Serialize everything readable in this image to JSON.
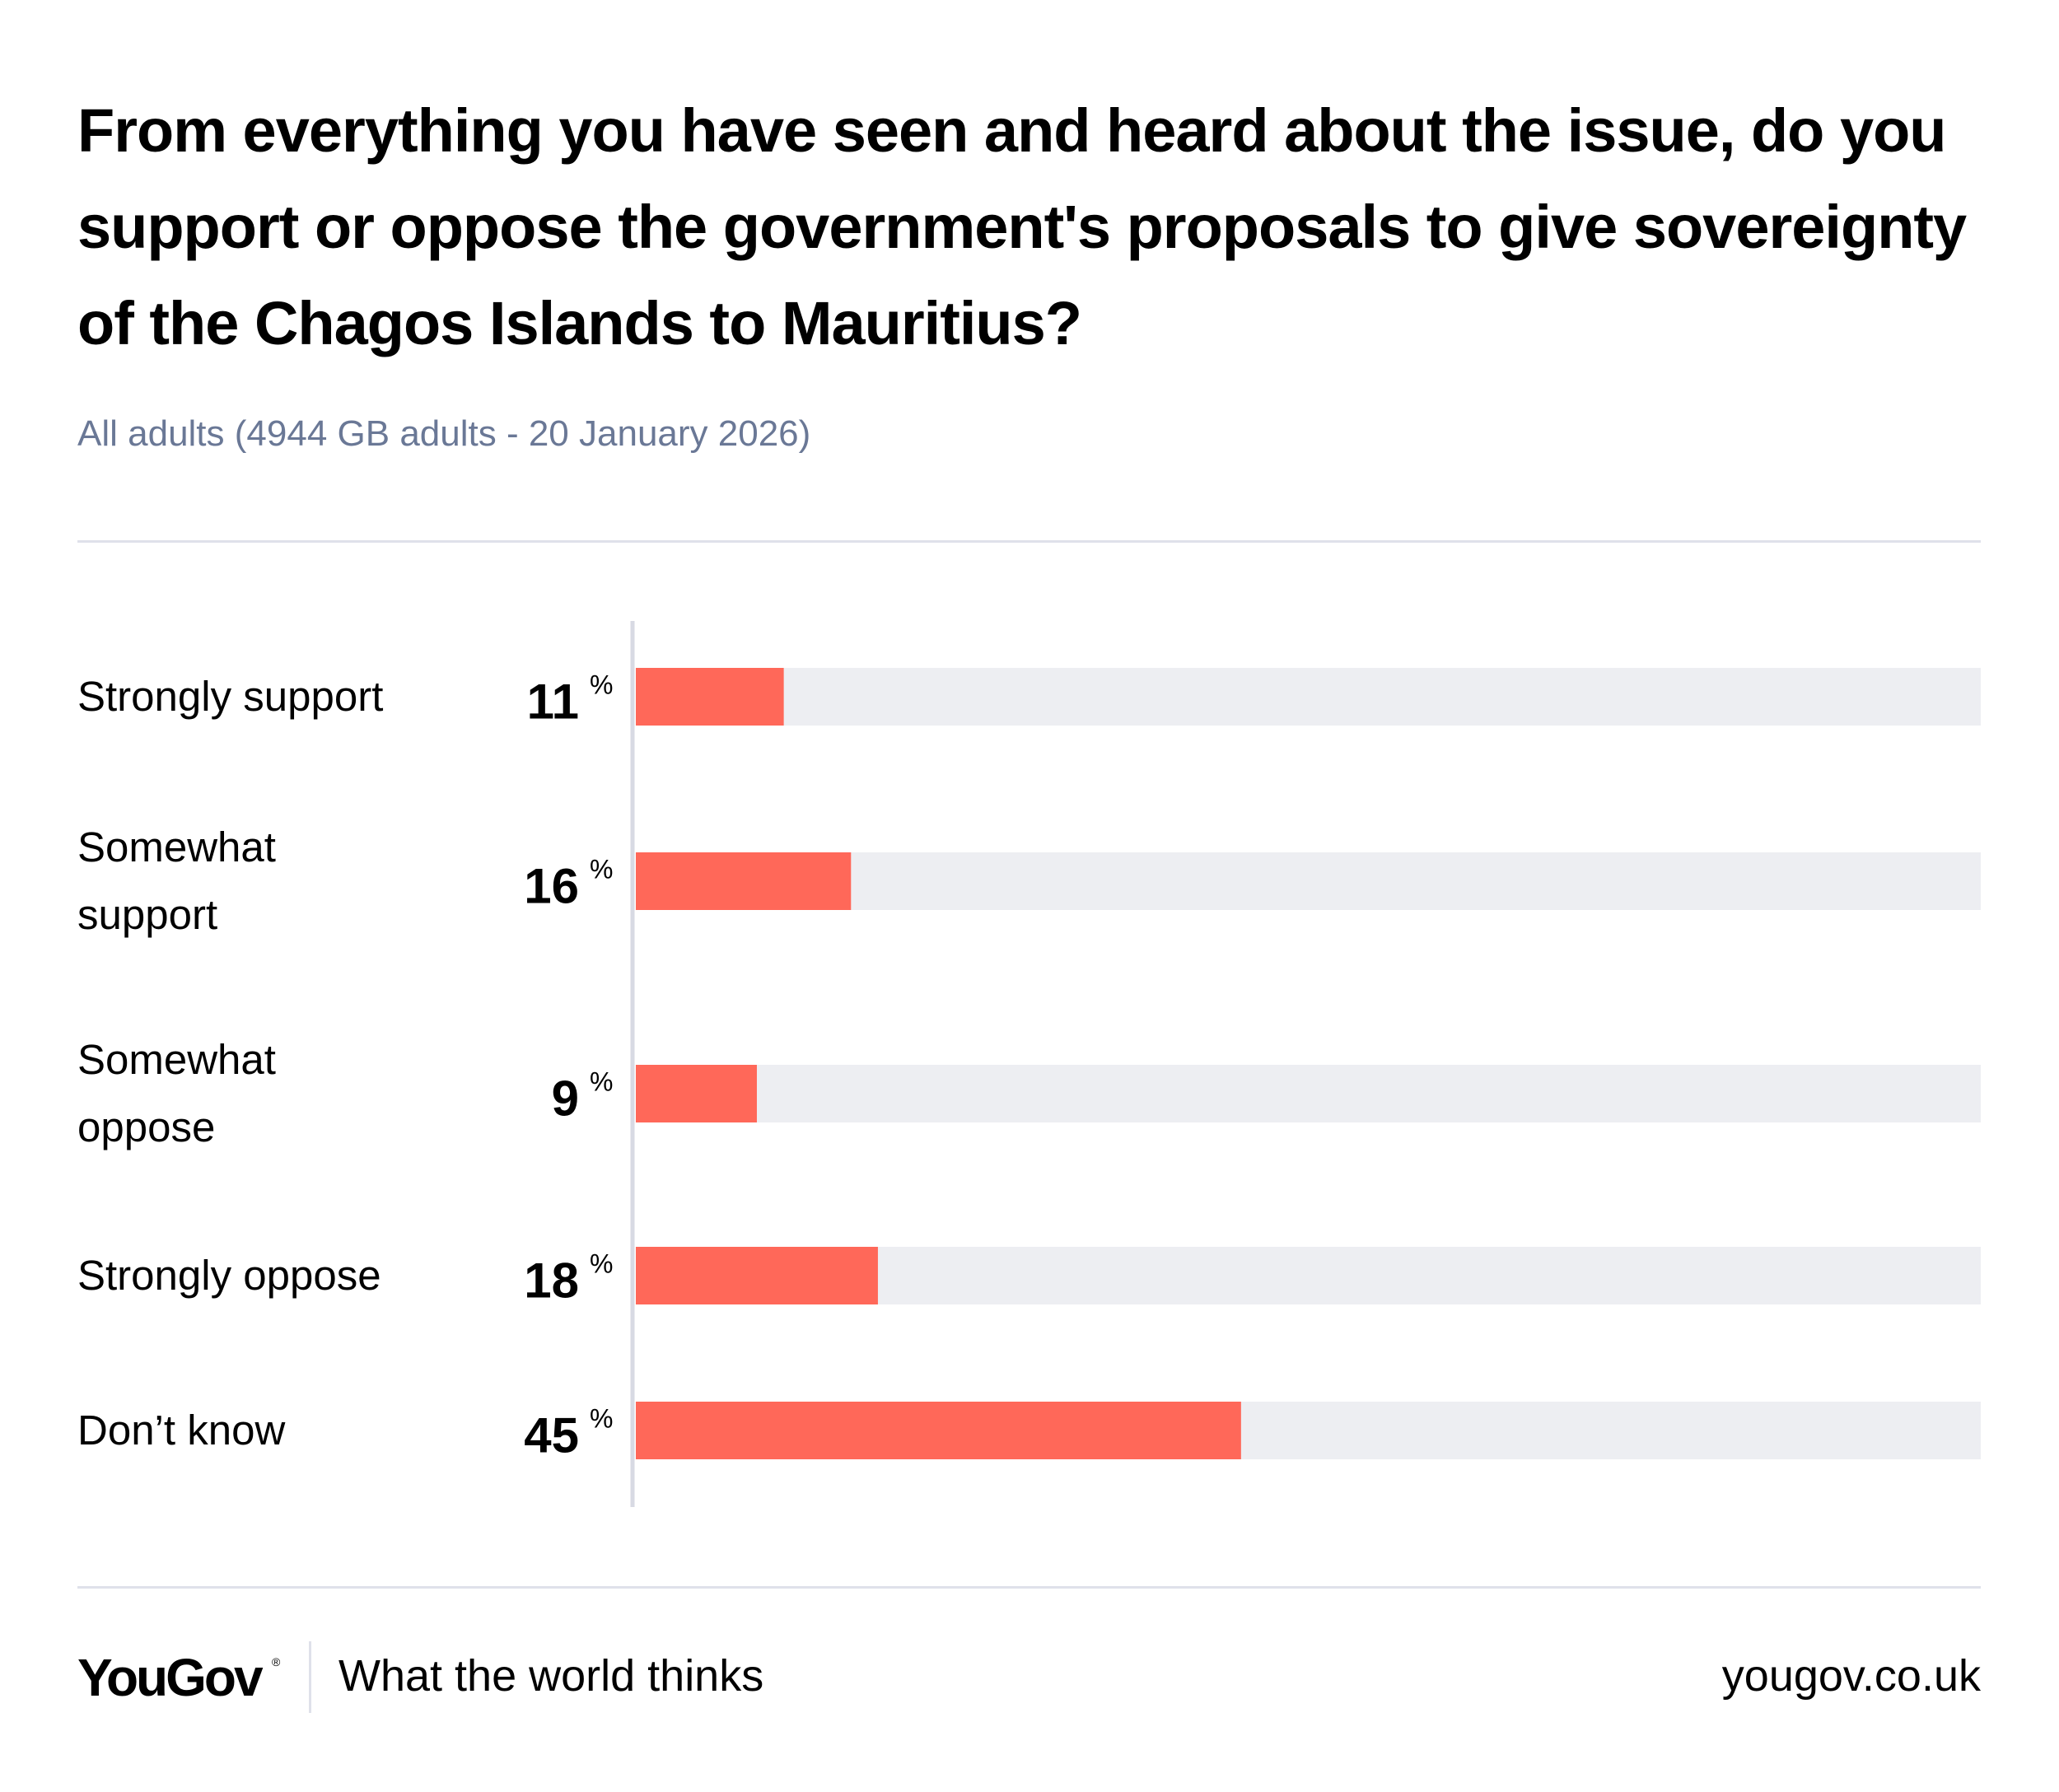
{
  "chart_data": {
    "type": "bar",
    "orientation": "horizontal",
    "title": "From everything you have seen and heard about the issue, do you support or oppose the government's proposals to give sovereignty of the Chagos Islands to Mauritius?",
    "subtitle": "All adults (4944 GB adults - 20 January 2026)",
    "categories": [
      "Strongly support",
      "Somewhat support",
      "Somewhat oppose",
      "Strongly oppose",
      "Don’t know"
    ],
    "values": [
      11,
      16,
      9,
      18,
      45
    ],
    "unit": "%",
    "color": "#ff6859",
    "track_color": "#edeef2",
    "xlim": [
      0,
      100
    ]
  },
  "footer": {
    "brand": "YouGov",
    "brand_mark": "®",
    "tagline": "What the world thinks",
    "url": "yougov.co.uk"
  }
}
